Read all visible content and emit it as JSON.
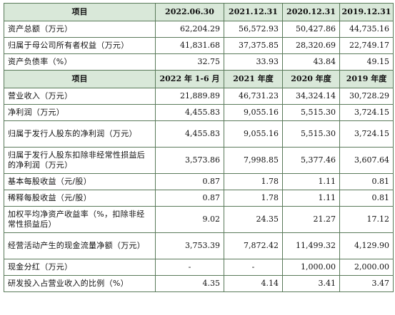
{
  "balance": {
    "headers": [
      "项目",
      "2022.06.30",
      "2021.12.31",
      "2020.12.31",
      "2019.12.31"
    ],
    "rows": [
      {
        "label": "资产总额（万元）",
        "v": [
          "62,204.29",
          "56,572.93",
          "50,427.86",
          "44,735.16"
        ]
      },
      {
        "label": "归属于母公司所有者权益（万元）",
        "v": [
          "41,831.68",
          "37,375.85",
          "28,320.69",
          "22,749.17"
        ]
      },
      {
        "label": "资产负债率（%）",
        "v": [
          "32.75",
          "33.93",
          "43.84",
          "49.15"
        ]
      }
    ]
  },
  "income": {
    "headers": [
      "项目",
      "2022 年 1-6 月",
      "2021 年度",
      "2020 年度",
      "2019 年度"
    ],
    "rows": [
      {
        "label": "营业收入（万元）",
        "v": [
          "21,889.89",
          "46,731.23",
          "34,324.14",
          "30,728.29"
        ]
      },
      {
        "label": "净利润（万元）",
        "v": [
          "4,455.83",
          "9,055.16",
          "5,515.30",
          "3,724.15"
        ]
      },
      {
        "label": "归属于发行人股东的净利润（万元）",
        "v": [
          "4,455.83",
          "9,055.16",
          "5,515.30",
          "3,724.15"
        ]
      },
      {
        "label": "归属于发行人股东扣除非经常性损益后的净利润（万元）",
        "v": [
          "3,573.86",
          "7,998.85",
          "5,377.46",
          "3,607.64"
        ]
      },
      {
        "label": "基本每股收益（元/股）",
        "v": [
          "0.87",
          "1.78",
          "1.11",
          "0.81"
        ]
      },
      {
        "label": "稀释每股收益（元/股）",
        "v": [
          "0.87",
          "1.78",
          "1.11",
          "0.81"
        ]
      },
      {
        "label": "加权平均净资产收益率（%，扣除非经常性损益后）",
        "v": [
          "9.02",
          "24.35",
          "21.27",
          "17.12"
        ]
      },
      {
        "label": "经营活动产生的现金流量净额（万元）",
        "v": [
          "3,753.39",
          "7,872.42",
          "11,499.32",
          "4,129.90"
        ]
      },
      {
        "label": "现金分红（万元）",
        "v": [
          "-",
          "-",
          "1,000.00",
          "2,000.00"
        ]
      },
      {
        "label": "研发投入占营业收入的比例（%）",
        "v": [
          "4.35",
          "4.14",
          "3.41",
          "3.47"
        ]
      }
    ]
  }
}
